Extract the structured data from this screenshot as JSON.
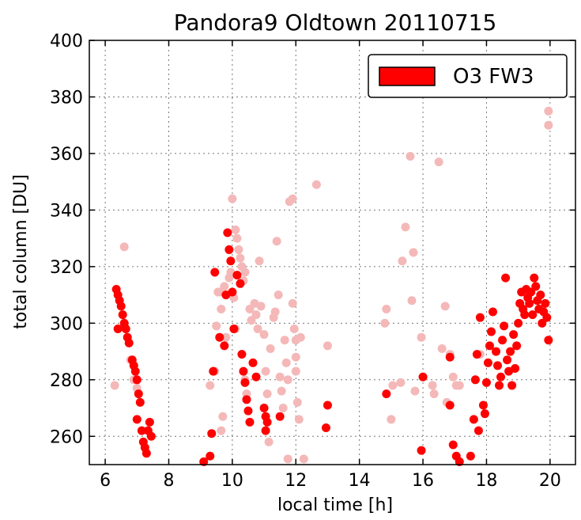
{
  "chart_data": {
    "type": "scatter",
    "title": "Pandora9 Oldtown 20110715",
    "xlabel": "local time [h]",
    "ylabel": "total column [DU]",
    "xlim": [
      5.5,
      20.8
    ],
    "ylim": [
      250,
      400
    ],
    "xticks": [
      6,
      8,
      10,
      12,
      14,
      16,
      18,
      20
    ],
    "yticks": [
      260,
      280,
      300,
      320,
      340,
      360,
      380,
      400
    ],
    "grid": true,
    "legend": {
      "position": "top-right",
      "entries": [
        {
          "label": "O3 FW3",
          "color": "#ff0000"
        }
      ]
    },
    "series": [
      {
        "name": "O3 FW3",
        "color": "#ff0000",
        "points": [
          [
            6.35,
            312
          ],
          [
            6.4,
            310
          ],
          [
            6.45,
            308
          ],
          [
            6.5,
            306
          ],
          [
            6.4,
            298
          ],
          [
            6.55,
            303
          ],
          [
            6.6,
            300
          ],
          [
            6.65,
            298
          ],
          [
            6.7,
            295
          ],
          [
            6.75,
            293
          ],
          [
            6.85,
            287
          ],
          [
            6.9,
            285
          ],
          [
            6.95,
            283
          ],
          [
            7.0,
            280
          ],
          [
            7.05,
            275
          ],
          [
            7.1,
            272
          ],
          [
            7.0,
            266
          ],
          [
            7.15,
            262
          ],
          [
            7.2,
            258
          ],
          [
            7.25,
            256
          ],
          [
            7.3,
            254
          ],
          [
            7.35,
            262
          ],
          [
            7.4,
            265
          ],
          [
            7.45,
            260
          ],
          [
            9.1,
            251
          ],
          [
            9.3,
            253
          ],
          [
            9.35,
            261
          ],
          [
            9.4,
            283
          ],
          [
            9.45,
            318
          ],
          [
            9.6,
            295
          ],
          [
            9.75,
            292
          ],
          [
            9.8,
            310
          ],
          [
            9.85,
            332
          ],
          [
            9.9,
            326
          ],
          [
            9.95,
            322
          ],
          [
            10.0,
            311
          ],
          [
            10.05,
            298
          ],
          [
            10.15,
            317
          ],
          [
            10.25,
            314
          ],
          [
            10.3,
            289
          ],
          [
            10.35,
            283
          ],
          [
            10.4,
            279
          ],
          [
            10.45,
            273
          ],
          [
            10.5,
            269
          ],
          [
            10.55,
            265
          ],
          [
            10.65,
            286
          ],
          [
            10.75,
            281
          ],
          [
            11.0,
            270
          ],
          [
            11.05,
            267
          ],
          [
            11.1,
            265
          ],
          [
            11.05,
            262
          ],
          [
            11.5,
            267
          ],
          [
            12.95,
            263
          ],
          [
            13.0,
            271
          ],
          [
            14.85,
            275
          ],
          [
            16.0,
            281
          ],
          [
            15.95,
            255
          ],
          [
            16.85,
            288
          ],
          [
            16.85,
            271
          ],
          [
            16.95,
            257
          ],
          [
            17.05,
            253
          ],
          [
            17.15,
            251
          ],
          [
            17.5,
            253
          ],
          [
            17.6,
            266
          ],
          [
            17.65,
            280
          ],
          [
            17.7,
            289
          ],
          [
            17.75,
            262
          ],
          [
            17.8,
            302
          ],
          [
            17.9,
            271
          ],
          [
            17.95,
            268
          ],
          [
            18.0,
            279
          ],
          [
            18.05,
            286
          ],
          [
            18.1,
            292
          ],
          [
            18.15,
            297
          ],
          [
            18.2,
            304
          ],
          [
            18.3,
            290
          ],
          [
            18.35,
            285
          ],
          [
            18.4,
            278
          ],
          [
            18.45,
            281
          ],
          [
            18.5,
            294
          ],
          [
            18.55,
            299
          ],
          [
            18.6,
            316
          ],
          [
            18.65,
            287
          ],
          [
            18.7,
            283
          ],
          [
            18.75,
            290
          ],
          [
            18.8,
            278
          ],
          [
            18.85,
            296
          ],
          [
            18.9,
            284
          ],
          [
            18.95,
            292
          ],
          [
            19.0,
            300
          ],
          [
            19.05,
            307
          ],
          [
            19.1,
            311
          ],
          [
            19.15,
            305
          ],
          [
            19.2,
            303
          ],
          [
            19.25,
            312
          ],
          [
            19.3,
            309
          ],
          [
            19.35,
            307
          ],
          [
            19.4,
            311
          ],
          [
            19.45,
            303
          ],
          [
            19.5,
            316
          ],
          [
            19.55,
            313
          ],
          [
            19.6,
            308
          ],
          [
            19.65,
            305
          ],
          [
            19.7,
            310
          ],
          [
            19.75,
            300
          ],
          [
            19.8,
            304
          ],
          [
            19.85,
            307
          ],
          [
            19.9,
            302
          ],
          [
            19.95,
            294
          ]
        ]
      },
      {
        "name": "",
        "color": "#f4b8b8",
        "points": [
          [
            6.3,
            278
          ],
          [
            6.6,
            327
          ],
          [
            6.8,
            287
          ],
          [
            6.9,
            280
          ],
          [
            7.0,
            277
          ],
          [
            9.3,
            278
          ],
          [
            9.45,
            283
          ],
          [
            9.5,
            299
          ],
          [
            9.55,
            311
          ],
          [
            9.6,
            311
          ],
          [
            9.65,
            305
          ],
          [
            9.65,
            262
          ],
          [
            9.7,
            267
          ],
          [
            9.75,
            313
          ],
          [
            9.8,
            295
          ],
          [
            9.9,
            316
          ],
          [
            9.95,
            318
          ],
          [
            10.0,
            344
          ],
          [
            10.05,
            309
          ],
          [
            10.1,
            298
          ],
          [
            10.1,
            333
          ],
          [
            10.15,
            330
          ],
          [
            10.2,
            326
          ],
          [
            10.25,
            323
          ],
          [
            10.3,
            320
          ],
          [
            10.35,
            315
          ],
          [
            10.4,
            318
          ],
          [
            10.4,
            280
          ],
          [
            10.45,
            275
          ],
          [
            10.55,
            305
          ],
          [
            10.6,
            301
          ],
          [
            10.7,
            307
          ],
          [
            10.75,
            303
          ],
          [
            10.8,
            298
          ],
          [
            10.85,
            322
          ],
          [
            10.9,
            306
          ],
          [
            11.0,
            296
          ],
          [
            11.05,
            283
          ],
          [
            11.1,
            275
          ],
          [
            11.15,
            258
          ],
          [
            11.2,
            291
          ],
          [
            11.3,
            302
          ],
          [
            11.35,
            304
          ],
          [
            11.4,
            329
          ],
          [
            11.45,
            310
          ],
          [
            11.5,
            281
          ],
          [
            11.55,
            276
          ],
          [
            11.6,
            270
          ],
          [
            11.65,
            294
          ],
          [
            11.7,
            286
          ],
          [
            11.75,
            280
          ],
          [
            11.75,
            252
          ],
          [
            11.8,
            343
          ],
          [
            11.9,
            344
          ],
          [
            11.9,
            307
          ],
          [
            11.95,
            298
          ],
          [
            12.0,
            294
          ],
          [
            12.0,
            288
          ],
          [
            12.0,
            283
          ],
          [
            12.05,
            272
          ],
          [
            12.1,
            266
          ],
          [
            12.15,
            295
          ],
          [
            12.25,
            252
          ],
          [
            12.65,
            349
          ],
          [
            13.0,
            292
          ],
          [
            14.8,
            300
          ],
          [
            14.85,
            305
          ],
          [
            15.0,
            266
          ],
          [
            15.05,
            278
          ],
          [
            15.3,
            279
          ],
          [
            15.35,
            322
          ],
          [
            15.45,
            334
          ],
          [
            15.6,
            359
          ],
          [
            15.65,
            308
          ],
          [
            15.7,
            325
          ],
          [
            15.75,
            276
          ],
          [
            15.95,
            295
          ],
          [
            16.0,
            281
          ],
          [
            16.3,
            278
          ],
          [
            16.35,
            275
          ],
          [
            16.5,
            357
          ],
          [
            16.6,
            291
          ],
          [
            16.7,
            306
          ],
          [
            16.75,
            272
          ],
          [
            16.85,
            289
          ],
          [
            16.95,
            281
          ],
          [
            17.05,
            278
          ],
          [
            17.15,
            278
          ],
          [
            17.8,
            289
          ],
          [
            19.95,
            375
          ],
          [
            19.95,
            370
          ]
        ]
      }
    ]
  }
}
